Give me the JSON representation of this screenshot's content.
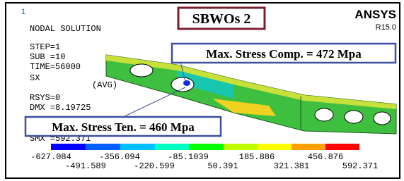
{
  "id_marker": "1",
  "header": {
    "title": "NODAL SOLUTION",
    "params": [
      "STEP=1",
      "SUB =10",
      "TIME=56000",
      "SX",
      "(AVG)",
      "RSYS=0",
      "DMX =8.19725",
      "SMX =592.371"
    ]
  },
  "brand": {
    "name": "ANSYS",
    "version": "R15.0"
  },
  "callouts": {
    "model": "SBWOs 2",
    "compression": "Max. Stress Comp. = 472 Mpa",
    "tension": "Max. Stress Ten. = 460 Mpa"
  },
  "legend": {
    "upper": [
      "-627.084",
      "-356.094",
      "-85.1039",
      "185.886",
      "456.876"
    ],
    "lower": [
      "-491.589",
      "-220.599",
      "50.391",
      "321.381",
      "592.371"
    ]
  }
}
